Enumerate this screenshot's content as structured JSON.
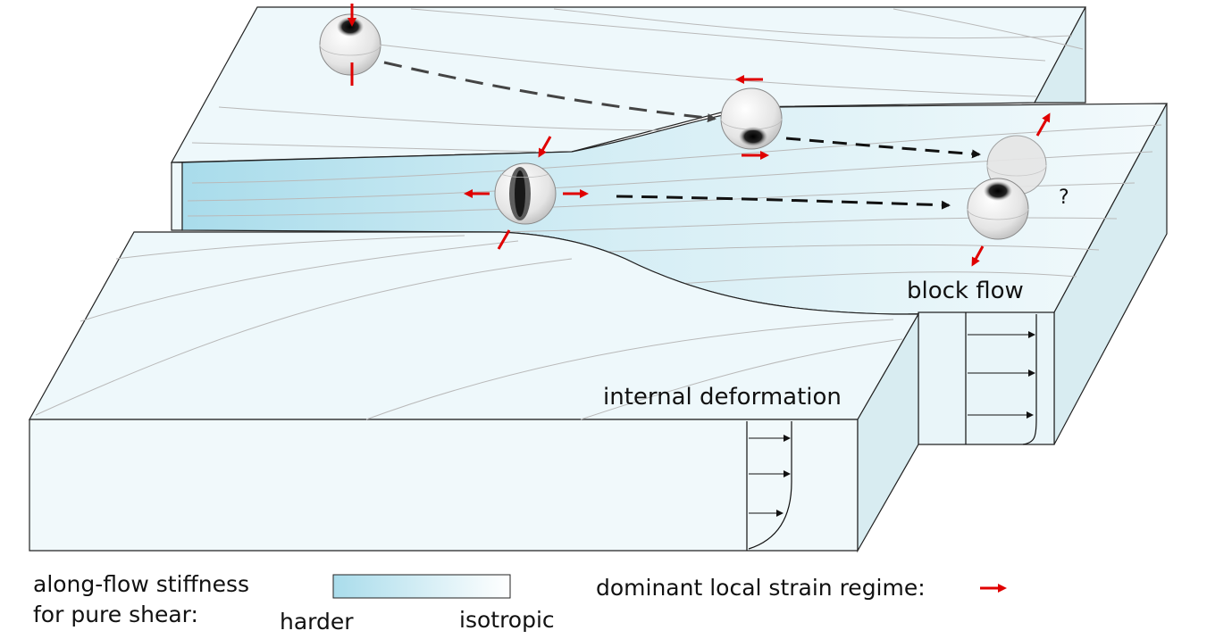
{
  "labels": {
    "block_flow": "block flow",
    "internal_deformation": "internal deformation",
    "question_mark": "?"
  },
  "legend": {
    "stiffness_line1": "along-flow stiffness",
    "stiffness_line2": "for pure shear:",
    "harder": "harder",
    "isotropic": "isotropic",
    "strain_regime": "dominant local strain regime:"
  },
  "colors": {
    "ice_surface": "#eef8fb",
    "soft_zone": "#a9dceb",
    "side_face": "#d8ecf1",
    "strain_arrow": "#e00000",
    "flowline": "#b9b9b9",
    "trajectory": "#222222"
  }
}
